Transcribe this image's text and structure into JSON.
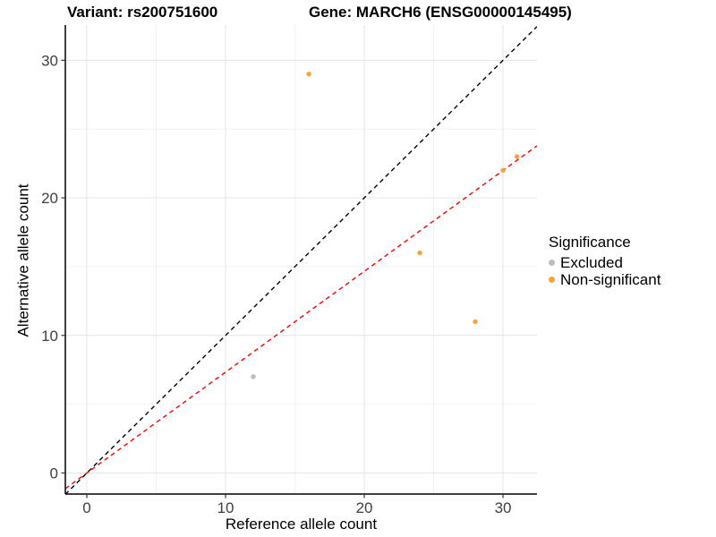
{
  "header": {
    "title_left": "Variant: rs200751600",
    "title_right": "Gene: MARCH6 (ENSG00000145495)"
  },
  "legend": {
    "title": "Significance",
    "items": [
      {
        "label": "Excluded",
        "color": "#BEBEBE"
      },
      {
        "label": "Non-significant",
        "color": "#F9A23C"
      }
    ]
  },
  "chart_data": {
    "type": "scatter",
    "title": "Variant: rs200751600   Gene: MARCH6 (ENSG00000145495)",
    "xlabel": "Reference allele count",
    "ylabel": "Alternative allele count",
    "xlim": [
      -1.55,
      32.45
    ],
    "ylim": [
      -1.53,
      32.56
    ],
    "xticks": [
      0,
      10,
      20,
      30
    ],
    "yticks": [
      0,
      10,
      20,
      30
    ],
    "minor_ticks": [
      5,
      15,
      25
    ],
    "grid": true,
    "legend_position": "right",
    "series": [
      {
        "name": "Excluded",
        "color": "#BEBEBE",
        "points": [
          [
            12,
            7
          ]
        ]
      },
      {
        "name": "Non-significant",
        "color": "#F9A23C",
        "points": [
          [
            16,
            29
          ],
          [
            24,
            16
          ],
          [
            28,
            11
          ],
          [
            30,
            22
          ],
          [
            31,
            23
          ]
        ]
      }
    ],
    "lines": [
      {
        "name": "identity-line",
        "slope": 1.0,
        "intercept": 0,
        "color": "#000000",
        "style": "dashed"
      },
      {
        "name": "fit-line",
        "slope": 0.733,
        "intercept": 0,
        "color": "#FF0000",
        "style": "dashed"
      }
    ],
    "colors": {
      "grid_major": "#e4e4e4",
      "grid_minor": "#f2f2f2",
      "axis_line": "#000000",
      "tick_label": "#404040"
    }
  }
}
